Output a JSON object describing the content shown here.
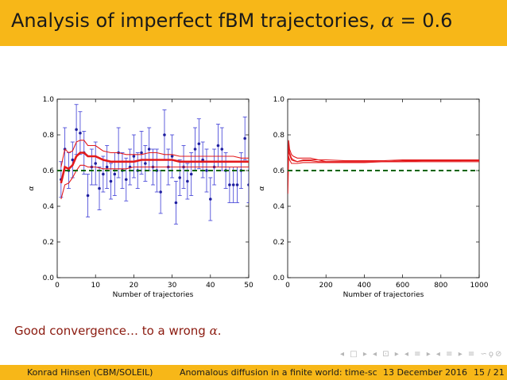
{
  "title": {
    "text": "Analysis of imperfect fBM trajectories,",
    "alpha_symbol": "α",
    "equals": "=",
    "alpha_value": "0.6"
  },
  "caption": {
    "text": "Good convergence… to a wrong",
    "alpha_symbol": "α",
    "period": "."
  },
  "nav_symbols": "◂ □ ▸ ◂ ⊡ ▸ ◂ ≡ ▸ ◂ ≡ ▸ ≡ ∽ϙ⊘",
  "footer": {
    "author": "Konrad Hinsen (CBM/SOLEIL)",
    "talk_title": "Anomalous diffusion in a finite world: time-sc",
    "date": "13 December 2016",
    "page": "15 / 21"
  },
  "colors": {
    "banner": "#f7b718",
    "caption": "#8b1a0f",
    "estimate": "#e31a1c",
    "reference": "#006400",
    "points": "#1f1f9f"
  },
  "chart_data": [
    {
      "type": "scatter",
      "xlabel": "Number of trajectories",
      "ylabel": "α",
      "xlim": [
        0,
        50
      ],
      "ylim": [
        0.0,
        1.0
      ],
      "xticks": [
        "0",
        "10",
        "20",
        "30",
        "40",
        "50"
      ],
      "yticks": [
        "0.0",
        "0.2",
        "0.4",
        "0.6",
        "0.8",
        "1.0"
      ],
      "reference_line": 0.6,
      "points": {
        "x": [
          1,
          2,
          3,
          4,
          5,
          6,
          7,
          8,
          9,
          10,
          11,
          12,
          13,
          14,
          15,
          16,
          17,
          18,
          19,
          20,
          21,
          22,
          23,
          24,
          25,
          26,
          27,
          28,
          29,
          30,
          31,
          32,
          33,
          34,
          35,
          36,
          37,
          38,
          39,
          40,
          41,
          42,
          43,
          44,
          45,
          46,
          47,
          48,
          49,
          50
        ],
        "y": [
          0.55,
          0.72,
          0.6,
          0.66,
          0.83,
          0.81,
          0.7,
          0.46,
          0.62,
          0.64,
          0.5,
          0.58,
          0.62,
          0.54,
          0.58,
          0.7,
          0.6,
          0.55,
          0.62,
          0.68,
          0.6,
          0.7,
          0.64,
          0.72,
          0.62,
          0.6,
          0.48,
          0.8,
          0.62,
          0.68,
          0.42,
          0.56,
          0.62,
          0.54,
          0.58,
          0.72,
          0.75,
          0.66,
          0.6,
          0.44,
          0.62,
          0.74,
          0.72,
          0.6,
          0.52,
          0.52,
          0.52,
          0.6,
          0.78,
          0.52
        ],
        "err": [
          0.1,
          0.12,
          0.1,
          0.1,
          0.14,
          0.12,
          0.12,
          0.12,
          0.1,
          0.12,
          0.12,
          0.1,
          0.12,
          0.1,
          0.12,
          0.14,
          0.1,
          0.12,
          0.1,
          0.12,
          0.1,
          0.12,
          0.1,
          0.12,
          0.1,
          0.12,
          0.12,
          0.14,
          0.1,
          0.12,
          0.12,
          0.1,
          0.12,
          0.1,
          0.12,
          0.12,
          0.14,
          0.1,
          0.12,
          0.12,
          0.1,
          0.12,
          0.12,
          0.1,
          0.1,
          0.1,
          0.1,
          0.1,
          0.12,
          0.1
        ]
      },
      "series": [
        {
          "x": [
            1,
            2,
            3,
            4,
            5,
            6,
            7,
            8,
            9,
            10,
            12,
            14,
            16,
            18,
            20,
            22,
            24,
            26,
            28,
            30,
            32,
            34,
            36,
            38,
            40,
            42,
            44,
            46,
            48,
            50
          ],
          "y": [
            0.53,
            0.62,
            0.61,
            0.63,
            0.68,
            0.7,
            0.7,
            0.68,
            0.68,
            0.68,
            0.66,
            0.65,
            0.65,
            0.65,
            0.65,
            0.66,
            0.66,
            0.66,
            0.66,
            0.66,
            0.65,
            0.65,
            0.65,
            0.65,
            0.65,
            0.65,
            0.65,
            0.65,
            0.65,
            0.65
          ]
        },
        {
          "x": [
            1,
            2,
            3,
            4,
            5,
            6,
            7,
            8,
            9,
            10,
            12,
            14,
            16,
            18,
            20,
            22,
            24,
            26,
            28,
            30,
            32,
            34,
            36,
            38,
            40,
            42,
            44,
            46,
            48,
            50
          ],
          "y": [
            0.62,
            0.72,
            0.7,
            0.71,
            0.76,
            0.77,
            0.77,
            0.74,
            0.74,
            0.74,
            0.71,
            0.7,
            0.7,
            0.69,
            0.69,
            0.69,
            0.7,
            0.7,
            0.69,
            0.69,
            0.68,
            0.68,
            0.68,
            0.68,
            0.68,
            0.68,
            0.68,
            0.68,
            0.67,
            0.67
          ]
        },
        {
          "x": [
            1,
            2,
            3,
            4,
            5,
            6,
            7,
            8,
            9,
            10,
            12,
            14,
            16,
            18,
            20,
            22,
            24,
            26,
            28,
            30,
            32,
            34,
            36,
            38,
            40,
            42,
            44,
            46,
            48,
            50
          ],
          "y": [
            0.44,
            0.52,
            0.53,
            0.56,
            0.6,
            0.63,
            0.63,
            0.62,
            0.62,
            0.62,
            0.61,
            0.61,
            0.61,
            0.61,
            0.62,
            0.62,
            0.62,
            0.62,
            0.62,
            0.62,
            0.62,
            0.62,
            0.62,
            0.62,
            0.62,
            0.62,
            0.62,
            0.62,
            0.62,
            0.62
          ]
        }
      ]
    },
    {
      "type": "line",
      "xlabel": "Number of trajectories",
      "ylabel": "α",
      "xlim": [
        0,
        1000
      ],
      "ylim": [
        0.0,
        1.0
      ],
      "xticks": [
        "0",
        "200",
        "400",
        "600",
        "800",
        "1000"
      ],
      "yticks": [
        "0.0",
        "0.2",
        "0.4",
        "0.6",
        "0.8",
        "1.0"
      ],
      "reference_line": 0.6,
      "series": [
        {
          "x": [
            1,
            5,
            10,
            20,
            30,
            50,
            80,
            120,
            160,
            200,
            300,
            400,
            500,
            600,
            700,
            800,
            900,
            1000
          ],
          "y": [
            0.52,
            0.74,
            0.7,
            0.67,
            0.66,
            0.65,
            0.66,
            0.66,
            0.66,
            0.65,
            0.65,
            0.65,
            0.65,
            0.655,
            0.655,
            0.655,
            0.655,
            0.655
          ]
        },
        {
          "x": [
            1,
            5,
            10,
            20,
            30,
            50,
            80,
            120,
            160,
            200,
            300,
            400,
            500,
            600,
            700,
            800,
            900,
            1000
          ],
          "y": [
            0.58,
            0.77,
            0.72,
            0.69,
            0.68,
            0.67,
            0.67,
            0.67,
            0.66,
            0.66,
            0.655,
            0.655,
            0.655,
            0.66,
            0.66,
            0.66,
            0.66,
            0.66
          ]
        },
        {
          "x": [
            1,
            5,
            10,
            20,
            30,
            50,
            80,
            120,
            160,
            200,
            300,
            400,
            500,
            600,
            700,
            800,
            900,
            1000
          ],
          "y": [
            0.47,
            0.68,
            0.66,
            0.64,
            0.64,
            0.64,
            0.645,
            0.645,
            0.645,
            0.645,
            0.645,
            0.645,
            0.65,
            0.65,
            0.65,
            0.65,
            0.65,
            0.65
          ]
        },
        {
          "x": [
            1,
            5,
            10,
            20,
            30,
            50,
            80,
            120,
            160,
            200,
            300,
            400,
            500,
            600,
            700,
            800,
            900,
            1000
          ],
          "y": [
            0.6,
            0.72,
            0.69,
            0.66,
            0.655,
            0.65,
            0.655,
            0.655,
            0.65,
            0.65,
            0.65,
            0.65,
            0.65,
            0.65,
            0.655,
            0.655,
            0.655,
            0.66
          ]
        }
      ]
    }
  ]
}
